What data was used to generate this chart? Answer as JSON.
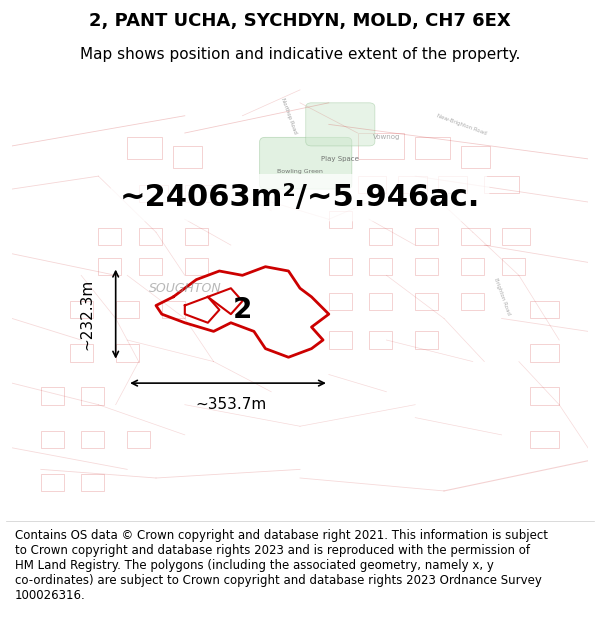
{
  "title": "2, PANT UCHA, SYCHDYN, MOLD, CH7 6EX",
  "subtitle": "Map shows position and indicative extent of the property.",
  "area_text": "~24063m²/~5.946ac.",
  "width_label": "~353.7m",
  "height_label": "~232.3m",
  "number_label": "2",
  "footer_wrapped": "Contains OS data © Crown copyright and database right 2021. This information is subject\nto Crown copyright and database rights 2023 and is reproduced with the permission of\nHM Land Registry. The polygons (including the associated geometry, namely x, y\nco-ordinates) are subject to Crown copyright and database rights 2023 Ordnance Survey\n100026316.",
  "title_fontsize": 13,
  "subtitle_fontsize": 11,
  "area_fontsize": 22,
  "label_fontsize": 11,
  "footer_fontsize": 8.5,
  "fig_width": 6.0,
  "fig_height": 6.25,
  "dpi": 100
}
